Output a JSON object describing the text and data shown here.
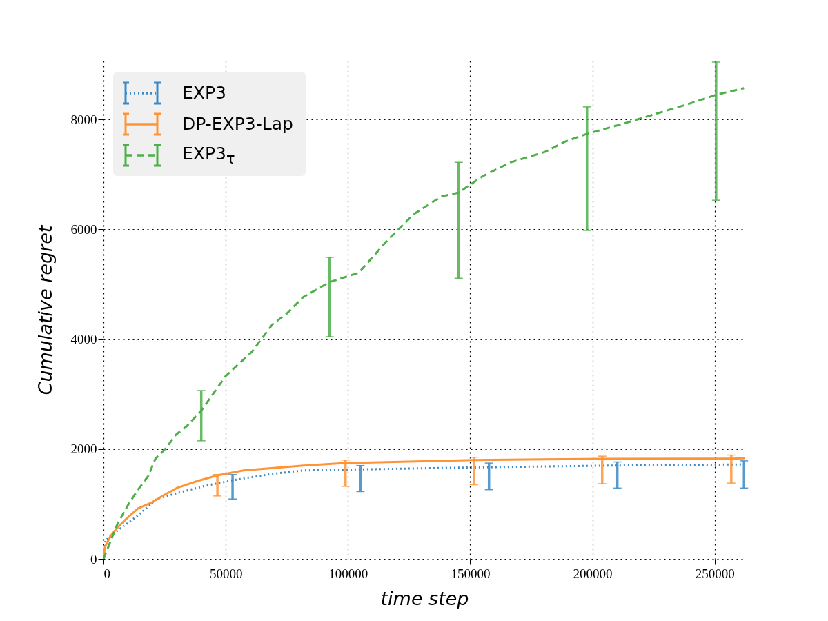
{
  "chart_data": {
    "type": "line",
    "xlabel": "time step",
    "ylabel": "Cumulative regret",
    "xlim": [
      0,
      262500
    ],
    "ylim": [
      0,
      9070
    ],
    "xticks": [
      0,
      50000,
      100000,
      150000,
      200000,
      250000
    ],
    "yticks": [
      0,
      2000,
      4000,
      6000,
      8000
    ],
    "grid": true,
    "legend": "top left",
    "series": [
      {
        "name": "EXP3",
        "color": "#3a8ac6",
        "line_style": "dotted",
        "x": [
          0,
          850,
          6500,
          14100,
          21700,
          31900,
          41500,
          52800,
          68600,
          81800,
          105100,
          157700,
          210200,
          262000
        ],
        "values": [
          0,
          350,
          540,
          790,
          1090,
          1220,
          1330,
          1430,
          1545,
          1610,
          1630,
          1670,
          1700,
          1720
        ],
        "errors": [
          null,
          null,
          null,
          null,
          null,
          null,
          null,
          [
            1090,
            1535
          ],
          null,
          null,
          [
            1225,
            1700
          ],
          [
            1260,
            1745
          ],
          [
            1290,
            1765
          ],
          [
            1290,
            1785
          ]
        ]
      },
      {
        "name": "DP-EXP3-Lap",
        "color": "#ff9436",
        "line_style": "solid",
        "x": [
          0,
          560,
          2820,
          5640,
          9000,
          14100,
          19800,
          24500,
          30200,
          38600,
          46600,
          57300,
          66900,
          81800,
          99000,
          151500,
          204000,
          256800,
          262000
        ],
        "values": [
          0,
          210,
          415,
          565,
          715,
          920,
          1030,
          1155,
          1295,
          1420,
          1520,
          1610,
          1645,
          1700,
          1745,
          1800,
          1820,
          1825,
          1830
        ],
        "errors": [
          null,
          null,
          null,
          null,
          null,
          null,
          null,
          null,
          null,
          null,
          [
            1145,
            1537
          ],
          null,
          null,
          null,
          [
            1320,
            1800
          ],
          [
            1350,
            1850
          ],
          [
            1370,
            1870
          ],
          [
            1380,
            1890
          ],
          null
        ]
      },
      {
        "name": "EXP3$_{τ}$",
        "color": "#4daf4a",
        "line_style": "dashed",
        "x": [
          0,
          2260,
          5640,
          9900,
          14100,
          18300,
          21200,
          25400,
          29600,
          33900,
          40000,
          50000,
          60700,
          69100,
          74800,
          81800,
          92500,
          104400,
          115700,
          127000,
          138300,
          145300,
          155200,
          166500,
          180600,
          189000,
          197800,
          211600,
          225700,
          239800,
          250600,
          262000
        ],
        "values": [
          0,
          250,
          630,
          970,
          1260,
          1510,
          1820,
          2010,
          2260,
          2410,
          2700,
          3330,
          3770,
          4270,
          4460,
          4770,
          5040,
          5210,
          5780,
          6280,
          6600,
          6670,
          6970,
          7220,
          7410,
          7600,
          7740,
          7910,
          8100,
          8290,
          8450,
          8570
        ],
        "errors": [
          null,
          null,
          null,
          null,
          null,
          null,
          null,
          null,
          null,
          null,
          [
            2150,
            3065
          ],
          null,
          null,
          null,
          null,
          null,
          [
            4045,
            5490
          ],
          null,
          null,
          null,
          null,
          [
            5110,
            7220
          ],
          null,
          null,
          null,
          null,
          [
            5980,
            8230
          ],
          null,
          null,
          null,
          [
            6530,
            9045
          ],
          null
        ]
      }
    ]
  }
}
